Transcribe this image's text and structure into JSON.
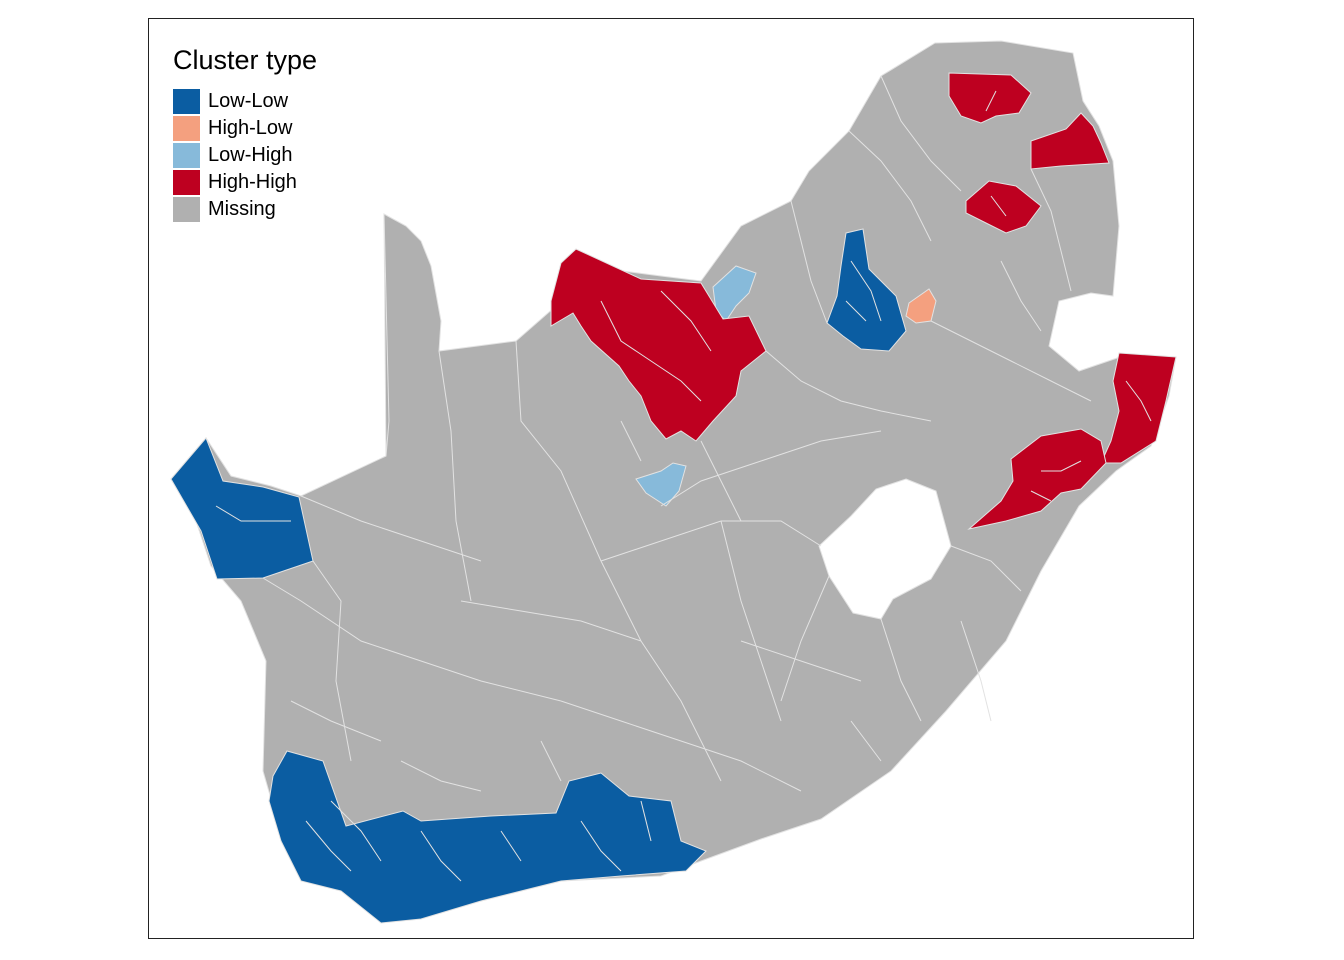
{
  "legend": {
    "title": "Cluster type",
    "items": [
      {
        "label": "Low-Low",
        "color": "#0B5DA2",
        "icon": "swatch-square"
      },
      {
        "label": "High-Low",
        "color": "#F4A07F",
        "icon": "swatch-square"
      },
      {
        "label": "Low-High",
        "color": "#87BADA",
        "icon": "swatch-square"
      },
      {
        "label": "High-High",
        "color": "#BE0020",
        "icon": "swatch-square"
      },
      {
        "label": "Missing",
        "color": "#B0B0B0",
        "icon": "swatch-square"
      }
    ]
  },
  "map": {
    "border_color": "#E2E2E2",
    "enclave_color": "#FFFFFF"
  }
}
